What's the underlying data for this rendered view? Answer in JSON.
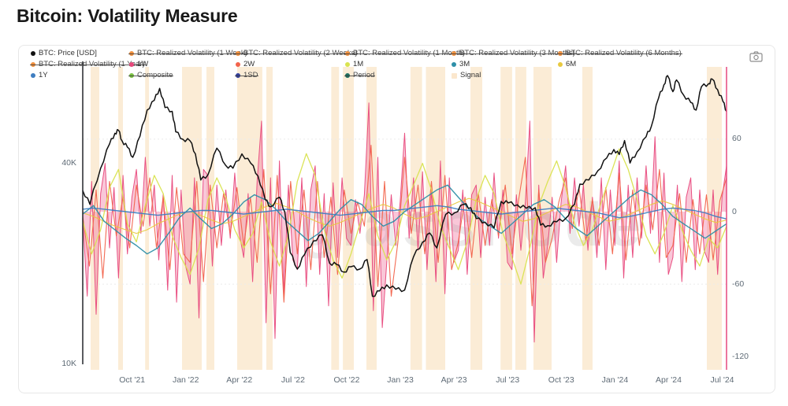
{
  "title": "Bitcoin: Volatility Measure",
  "watermark": "glassnode",
  "toolbar": {
    "camera_tooltip": "camera"
  },
  "colors": {
    "price": "#111111",
    "w1": "#e8487c",
    "w1_fill": "#ef6d99",
    "w2": "#f2634b",
    "m1": "#d9e34f",
    "m3": "#2e8fa8",
    "m6": "#e8c93f",
    "y1": "#3f7ec1",
    "signal_band": "#f7ddb5",
    "cursor_line": "#e5487e",
    "axis_line": "#23272c",
    "legend_orange": "#f0903e"
  },
  "legend": {
    "rows": [
      [
        {
          "label": "BTC: Price [USD]",
          "color": "#111111",
          "struck": false,
          "shape": "dot"
        },
        {
          "label": "BTC: Realized Volatility (1 Week)",
          "color": "#f0903e",
          "struck": true,
          "shape": "dot"
        },
        {
          "label": "BTC: Realized Volatility (2 Weeks)",
          "color": "#f0903e",
          "struck": true,
          "shape": "dot"
        },
        {
          "label": "BTC: Realized Volatility (1 Month)",
          "color": "#f0903e",
          "struck": true,
          "shape": "dot"
        },
        {
          "label": "BTC: Realized Volatility (3 Months)",
          "color": "#f0903e",
          "struck": true,
          "shape": "dot"
        },
        {
          "label": "BTC: Realized Volatility (6 Months)",
          "color": "#f0903e",
          "struck": true,
          "shape": "dot"
        }
      ],
      [
        {
          "label": "BTC: Realized Volatility (1 Year)",
          "color": "#f0903e",
          "struck": true,
          "shape": "dot"
        },
        {
          "label": "1W",
          "color": "#e8487c",
          "struck": false,
          "shape": "dot"
        },
        {
          "label": "2W",
          "color": "#f2634b",
          "struck": false,
          "shape": "dot"
        },
        {
          "label": "1M",
          "color": "#d9e34f",
          "struck": false,
          "shape": "dot"
        },
        {
          "label": "3M",
          "color": "#2e8fa8",
          "struck": false,
          "shape": "dot"
        },
        {
          "label": "6M",
          "color": "#e8c93f",
          "struck": false,
          "shape": "dot"
        }
      ],
      [
        {
          "label": "1Y",
          "color": "#3f7ec1",
          "struck": false,
          "shape": "dot"
        },
        {
          "label": "Composite",
          "color": "#7bc144",
          "struck": true,
          "shape": "dot"
        },
        {
          "label": "1SD",
          "color": "#333f9b",
          "struck": true,
          "shape": "dot"
        },
        {
          "label": "Period",
          "color": "#1f6f5f",
          "struck": true,
          "shape": "dot"
        },
        {
          "label": "Signal",
          "color": "#fbe7cd",
          "struck": false,
          "shape": "square"
        }
      ]
    ]
  },
  "chart_data": {
    "type": "line",
    "title": "Bitcoin: Volatility Measure",
    "x_axis": {
      "months_total": 36,
      "ticks": [
        {
          "label": "Oct '21",
          "t": 0.0767
        },
        {
          "label": "Jan '22",
          "t": 0.16
        },
        {
          "label": "Apr '22",
          "t": 0.2433
        },
        {
          "label": "Jul '22",
          "t": 0.3267
        },
        {
          "label": "Oct '22",
          "t": 0.41
        },
        {
          "label": "Jan '23",
          "t": 0.4933
        },
        {
          "label": "Apr '23",
          "t": 0.5767
        },
        {
          "label": "Jul '23",
          "t": 0.66
        },
        {
          "label": "Oct '23",
          "t": 0.7433
        },
        {
          "label": "Jan '24",
          "t": 0.8267
        },
        {
          "label": "Apr '24",
          "t": 0.91
        },
        {
          "label": "Jul '24",
          "t": 0.9933
        }
      ]
    },
    "left_axis": {
      "scale": "log",
      "unit": "USD",
      "ticks": [
        {
          "label": "40K",
          "price": 40000
        },
        {
          "label": "10K",
          "price": 10000
        }
      ]
    },
    "right_axis": {
      "range": [
        -120,
        115
      ],
      "ticks": [
        {
          "label": "60",
          "v": 60
        },
        {
          "label": "0",
          "v": 0
        },
        {
          "label": "-60",
          "v": -60
        },
        {
          "label": "-120",
          "v": -120
        }
      ],
      "gridlines_at": [
        60,
        0,
        -60
      ]
    },
    "price_series": {
      "name": "BTC: Price [USD]",
      "points_month_price": [
        [
          0,
          33000
        ],
        [
          0.4,
          30000
        ],
        [
          1,
          38500
        ],
        [
          1.5,
          45500
        ],
        [
          1.8,
          49000
        ],
        [
          2,
          50000
        ],
        [
          2.2,
          46500
        ],
        [
          2.5,
          44500
        ],
        [
          2.8,
          41500
        ],
        [
          3.2,
          48000
        ],
        [
          3.6,
          57500
        ],
        [
          4,
          61500
        ],
        [
          4.3,
          66800
        ],
        [
          4.6,
          58500
        ],
        [
          5,
          57000
        ],
        [
          5.2,
          49500
        ],
        [
          5.6,
          47000
        ],
        [
          6,
          46500
        ],
        [
          6.3,
          42500
        ],
        [
          6.6,
          35500
        ],
        [
          7,
          36800
        ],
        [
          7.5,
          44200
        ],
        [
          8,
          39200
        ],
        [
          8.4,
          38500
        ],
        [
          8.9,
          42500
        ],
        [
          9.4,
          39800
        ],
        [
          9.8,
          36500
        ],
        [
          10.2,
          31000
        ],
        [
          10.5,
          29500
        ],
        [
          11,
          31500
        ],
        [
          11.3,
          28500
        ],
        [
          11.6,
          21500
        ],
        [
          12,
          19200
        ],
        [
          12.4,
          21200
        ],
        [
          12.9,
          23300
        ],
        [
          13.4,
          24300
        ],
        [
          13.8,
          20000
        ],
        [
          14.2,
          19800
        ],
        [
          14.6,
          18800
        ],
        [
          15,
          19500
        ],
        [
          15.5,
          19200
        ],
        [
          15.9,
          20500
        ],
        [
          16.2,
          15900
        ],
        [
          16.6,
          16500
        ],
        [
          17,
          17200
        ],
        [
          17.5,
          16700
        ],
        [
          18,
          16600
        ],
        [
          18.5,
          20900
        ],
        [
          19,
          23100
        ],
        [
          19.4,
          24600
        ],
        [
          19.8,
          22200
        ],
        [
          20.3,
          28000
        ],
        [
          20.8,
          28300
        ],
        [
          21.3,
          30000
        ],
        [
          21.7,
          29300
        ],
        [
          22,
          27200
        ],
        [
          22.5,
          26500
        ],
        [
          23,
          25500
        ],
        [
          23.4,
          30600
        ],
        [
          23.8,
          30300
        ],
        [
          24.3,
          29900
        ],
        [
          24.8,
          29200
        ],
        [
          25.3,
          29300
        ],
        [
          25.6,
          26000
        ],
        [
          26,
          25900
        ],
        [
          26.5,
          26600
        ],
        [
          27,
          27200
        ],
        [
          27.5,
          30000
        ],
        [
          27.8,
          34500
        ],
        [
          28.3,
          35500
        ],
        [
          28.8,
          37800
        ],
        [
          29.3,
          41300
        ],
        [
          29.7,
          43800
        ],
        [
          30,
          42300
        ],
        [
          30.3,
          46600
        ],
        [
          30.6,
          39900
        ],
        [
          31,
          43100
        ],
        [
          31.5,
          47800
        ],
        [
          31.8,
          51500
        ],
        [
          32.2,
          62500
        ],
        [
          32.5,
          68500
        ],
        [
          32.7,
          73000
        ],
        [
          33,
          65300
        ],
        [
          33.2,
          70800
        ],
        [
          33.6,
          63800
        ],
        [
          34,
          60600
        ],
        [
          34.3,
          57500
        ],
        [
          34.6,
          67600
        ],
        [
          35,
          69000
        ],
        [
          35.2,
          71200
        ],
        [
          35.5,
          66200
        ],
        [
          35.8,
          61000
        ],
        [
          36,
          57000
        ]
      ]
    },
    "oscillator_series": [
      {
        "name": "1W",
        "color_key": "w1",
        "width": 1,
        "fill": true,
        "values": [
          -5,
          -70,
          25,
          -85,
          15,
          40,
          -30,
          20,
          -55,
          30,
          -35,
          12,
          35,
          -18,
          45,
          -12,
          22,
          -40,
          15,
          -65,
          30,
          -75,
          18,
          -45,
          -60,
          28,
          -88,
          35,
          30,
          -45,
          22,
          -28,
          18,
          -22,
          32,
          -18,
          -38,
          15,
          -58,
          25,
          75,
          -92,
          28,
          -105,
          42,
          -68,
          22,
          -40,
          -48,
          28,
          -62,
          18,
          38,
          -52,
          15,
          -78,
          24,
          -38,
          28,
          -22,
          -28,
          10,
          -18,
          14,
          90,
          -82,
          45,
          -96,
          -42,
          14,
          -28,
          8,
          65,
          -22,
          28,
          -32,
          33,
          -48,
          18,
          -58,
          42,
          -68,
          28,
          -42,
          -32,
          18,
          -52,
          14,
          22,
          -38,
          12,
          -28,
          32,
          -22,
          18,
          -42,
          -48,
          14,
          -32,
          8,
          75,
          -108,
          22,
          -55,
          -28,
          12,
          -42,
          8,
          38,
          -18,
          28,
          -12,
          22,
          -32,
          12,
          -38,
          28,
          -48,
          18,
          -28,
          42,
          -55,
          22,
          -38,
          28,
          -22,
          38,
          -18,
          62,
          -42,
          32,
          -52,
          -38,
          22,
          -58,
          12,
          28,
          -48,
          18,
          -32,
          -42,
          18,
          -52,
          12,
          38
        ]
      },
      {
        "name": "2W",
        "color_key": "w2",
        "width": 1.1,
        "fill": false,
        "values": [
          -4,
          -45,
          18,
          -55,
          25,
          -20,
          12,
          -30,
          22,
          -12,
          28,
          -30,
          12,
          -48,
          20,
          -35,
          -42,
          25,
          -58,
          22,
          -30,
          15,
          -18,
          20,
          -28,
          12,
          -42,
          35,
          -68,
          30,
          -75,
          25,
          -35,
          18,
          -48,
          25,
          -38,
          12,
          -52,
          18,
          -18,
          8,
          -12,
          55,
          -62,
          25,
          -70,
          -25,
          45,
          -18,
          22,
          -35,
          25,
          -42,
          30,
          -48,
          -25,
          12,
          -38,
          15,
          -28,
          10,
          -20,
          22,
          -35,
          10,
          45,
          -78,
          18,
          -42,
          -22,
          8,
          28,
          -14,
          20,
          -24,
          10,
          -28,
          20,
          -35,
          32,
          -40,
          18,
          -28,
          22,
          -15,
          35,
          -38,
          -28,
          15,
          -42,
          10,
          -35,
          14,
          -40,
          9,
          28
        ]
      },
      {
        "name": "1M",
        "color_key": "m1",
        "width": 1.3,
        "fill": false,
        "values": [
          -8,
          -35,
          -15,
          20,
          35,
          -10,
          -25,
          5,
          30,
          15,
          -20,
          -38,
          -52,
          -30,
          10,
          28,
          12,
          -15,
          -30,
          -18,
          8,
          -25,
          -45,
          -20,
          25,
          48,
          30,
          -15,
          -40,
          -55,
          -35,
          -10,
          15,
          -20,
          -40,
          -25,
          5,
          22,
          40,
          18,
          -12,
          -30,
          -48,
          -25,
          10,
          30,
          15,
          -18,
          -38,
          -60,
          -30,
          5,
          25,
          42,
          20,
          -10,
          -28,
          -15,
          8,
          30,
          52,
          35,
          10,
          -20,
          -35,
          -18,
          5,
          -15,
          -32,
          -45,
          -22,
          -30,
          -12
        ]
      },
      {
        "name": "6M",
        "color_key": "m6",
        "width": 1.1,
        "fill": false,
        "values": [
          -1,
          -4,
          -8,
          -12,
          -15,
          -18,
          -15,
          -10,
          -6,
          -2,
          0,
          -3,
          -7,
          -10,
          -8,
          -4,
          0,
          4,
          7,
          4,
          0,
          -5,
          -9,
          -12,
          -9,
          -5,
          -1,
          3,
          6,
          3,
          -2,
          -6,
          -4,
          0,
          4,
          8,
          11,
          8,
          4,
          0,
          -4,
          -8,
          -6,
          -2,
          2,
          6,
          4,
          0,
          -4,
          -8,
          -6,
          -2,
          2,
          6,
          9,
          6,
          2,
          -2,
          -6,
          -9,
          -7
        ]
      },
      {
        "name": "3M",
        "color_key": "m3",
        "width": 1.4,
        "fill": false,
        "values": [
          -2,
          5,
          -8,
          -15,
          -22,
          -28,
          -35,
          -30,
          -18,
          -5,
          3,
          -6,
          -14,
          -10,
          -2,
          8,
          14,
          10,
          2,
          -8,
          -16,
          -24,
          -18,
          -8,
          2,
          10,
          6,
          -4,
          -12,
          -8,
          0,
          6,
          12,
          18,
          22,
          12,
          2,
          -6,
          -12,
          -18,
          -10,
          -2,
          6,
          10,
          4,
          -6,
          -14,
          -20,
          -12,
          -4,
          4,
          12,
          18,
          14,
          6,
          -4,
          -10,
          -16,
          -22,
          -16,
          -10
        ]
      },
      {
        "name": "1Y",
        "color_key": "y1",
        "width": 1.4,
        "fill": false,
        "values": [
          2,
          3,
          2,
          1,
          0,
          -1,
          -2,
          -3,
          -2,
          -1,
          0,
          1,
          1,
          0,
          -1,
          -2,
          -1,
          0,
          1,
          2,
          1,
          0,
          -1,
          -2,
          -3,
          -2,
          -1,
          0,
          1,
          1,
          2,
          3,
          4,
          5,
          4,
          2,
          1,
          0,
          -1,
          -2,
          -1,
          0,
          1,
          2,
          3,
          2,
          1,
          0,
          -1,
          -3,
          -5,
          -4,
          -2,
          0,
          2,
          3,
          2,
          1,
          -1,
          -4,
          -6
        ]
      }
    ],
    "signal_bands_t": [
      [
        0.0122,
        0.0257
      ],
      [
        0.0551,
        0.0624
      ],
      [
        0.097,
        0.103
      ],
      [
        0.1542,
        0.1848
      ],
      [
        0.1922,
        0.2044
      ],
      [
        0.2399,
        0.279
      ],
      [
        0.2852,
        0.295
      ],
      [
        0.386,
        0.398
      ],
      [
        0.404,
        0.421
      ],
      [
        0.4406,
        0.4565
      ],
      [
        0.509,
        0.527
      ],
      [
        0.533,
        0.563
      ],
      [
        0.6022,
        0.6205
      ],
      [
        0.649,
        0.667
      ],
      [
        0.672,
        0.689
      ],
      [
        0.7001,
        0.7283
      ],
      [
        0.776,
        0.7919
      ],
      [
        0.9694,
        0.9927
      ]
    ],
    "cursor_line_t": 1.0,
    "legend_position": "top"
  }
}
